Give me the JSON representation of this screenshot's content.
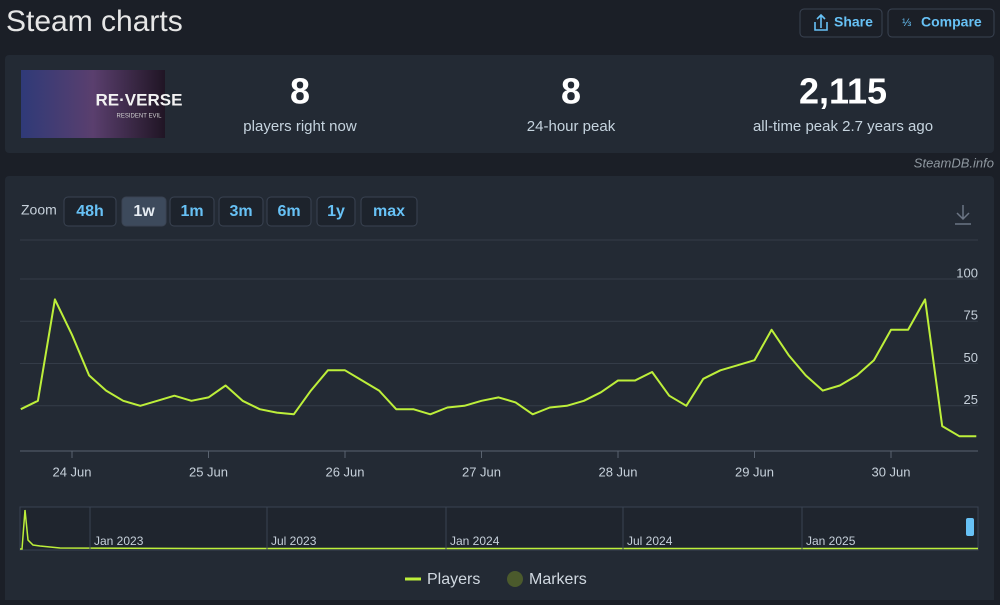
{
  "header": {
    "title": "Steam charts",
    "buttons": [
      "Share",
      "Compare"
    ]
  },
  "game": {
    "logo": "RE·VERSE",
    "sublogo": "RESIDENT EVIL"
  },
  "stats": [
    {
      "value": "8",
      "label": "players right now"
    },
    {
      "value": "8",
      "label": "24-hour peak"
    },
    {
      "value": "2,115",
      "label": "all-time peak 2.7 years ago"
    }
  ],
  "credit": "SteamDB.info",
  "zoom": {
    "label": "Zoom",
    "options": [
      "48h",
      "1w",
      "1m",
      "3m",
      "6m",
      "1y",
      "max"
    ],
    "active": "1w"
  },
  "chart_data": {
    "type": "line",
    "categories": [
      null,
      null,
      null,
      "24 Jun",
      null,
      null,
      null,
      null,
      null,
      null,
      null,
      "25 Jun",
      null,
      null,
      null,
      null,
      null,
      null,
      null,
      "26 Jun",
      null,
      null,
      null,
      null,
      null,
      null,
      null,
      "27 Jun",
      null,
      null,
      null,
      null,
      null,
      null,
      null,
      "28 Jun",
      null,
      null,
      null,
      null,
      null,
      null,
      null,
      "29 Jun",
      null,
      null,
      null,
      null,
      null,
      null,
      null,
      "30 Jun",
      null,
      null,
      null,
      null,
      null
    ],
    "series": [
      {
        "name": "Players",
        "color": "#bdef3a",
        "values": [
          20,
          25,
          85,
          64,
          40,
          31,
          25,
          22,
          25,
          28,
          25,
          27,
          34,
          25,
          20,
          18,
          17,
          31,
          43,
          43,
          37,
          31,
          20,
          20,
          17,
          21,
          22,
          25,
          27,
          24,
          17,
          21,
          22,
          25,
          30,
          37,
          37,
          42,
          28,
          22,
          38,
          43,
          46,
          49,
          67,
          52,
          40,
          31,
          34,
          40,
          49,
          67,
          67,
          85,
          10,
          4,
          4
        ]
      }
    ],
    "markers": {
      "name": "Markers",
      "color": "#4b5a2c"
    },
    "ylim": [
      0,
      100
    ],
    "yticks": [
      25,
      50,
      75,
      100
    ],
    "grid": true,
    "navigator_labels": [
      "Jan 2023",
      "Jul 2023",
      "Jan 2024",
      "Jul 2024",
      "Jan 2025"
    ]
  }
}
